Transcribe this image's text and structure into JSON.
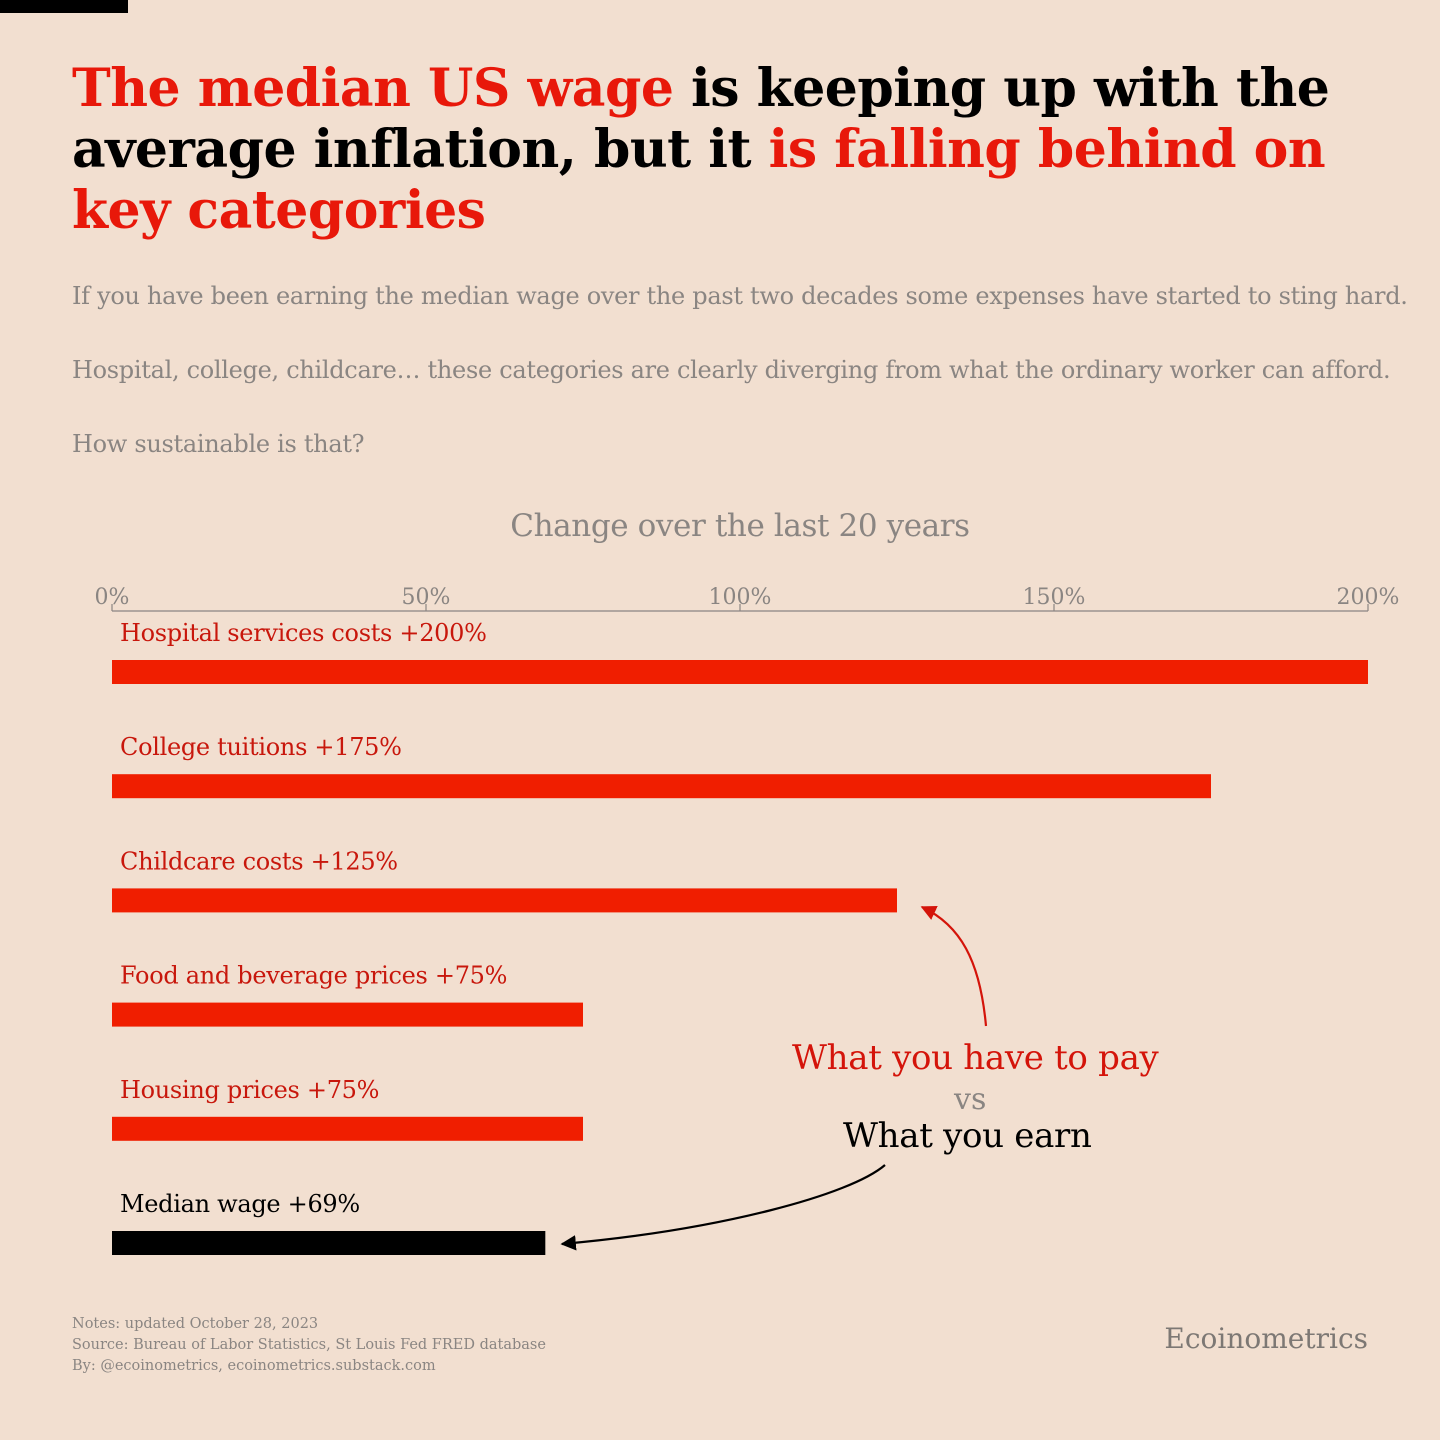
{
  "title": {
    "red1": "The median US wage",
    "black1": " is keeping up with the average inflation, but it ",
    "red2": "is falling behind on key categories"
  },
  "subtitle": {
    "line1": "If you have been earning the median wage over the past two decades some expenses have started to sting hard.",
    "line2": "Hospital, college, childcare… these categories are clearly diverging from what the ordinary worker can afford.",
    "line3": "How sustainable is that?"
  },
  "annotation": {
    "pay": "What you have to pay",
    "vs": "vs",
    "earn": "What you earn"
  },
  "footer": {
    "notes": "Notes: updated October 28, 2023",
    "source": "Source: Bureau of Labor Statistics, St Louis Fed FRED database",
    "by": "By: @ecoinometrics, ecoinometrics.substack.com"
  },
  "brand": "Ecoinometrics",
  "colors": {
    "accent": "#f01e00",
    "wage": "#000000",
    "background": "#f2dfd0",
    "muted": "#8a8582"
  },
  "chart_data": {
    "type": "bar",
    "orientation": "horizontal",
    "title": "Change over the last 20 years",
    "xlim": [
      0,
      200
    ],
    "ticks": [
      "0%",
      "50%",
      "100%",
      "150%",
      "200%"
    ],
    "tick_values": [
      0,
      50,
      100,
      150,
      200
    ],
    "categories": [
      "Hospital services costs +200%",
      "College tuitions +175%",
      "Childcare costs +125%",
      "Food and beverage prices +75%",
      "Housing prices +75%",
      "Median wage +69%"
    ],
    "values": [
      200,
      175,
      125,
      75,
      75,
      69
    ],
    "bar_colors": [
      "#f01e00",
      "#f01e00",
      "#f01e00",
      "#f01e00",
      "#f01e00",
      "#000000"
    ],
    "label_colors": [
      "#c8170c",
      "#c8170c",
      "#c8170c",
      "#c8170c",
      "#c8170c",
      "#000000"
    ]
  }
}
